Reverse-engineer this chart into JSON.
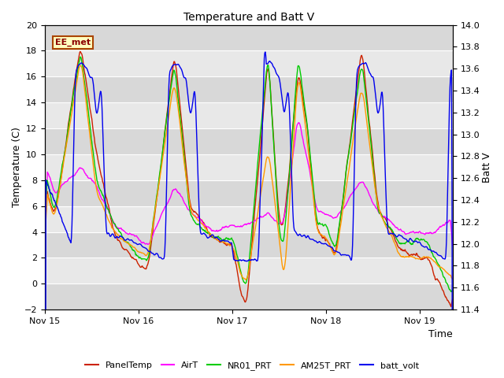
{
  "title": "Temperature and Batt V",
  "xlabel": "Time",
  "ylabel_left": "Temperature (C)",
  "ylabel_right": "Batt V",
  "annotation": "EE_met",
  "ylim_left": [
    -2,
    20
  ],
  "ylim_right": [
    11.4,
    14.0
  ],
  "plot_bg_color": "#e8e8e8",
  "stripe_color_dark": "#d0d0d0",
  "stripe_color_light": "#e8e8e8",
  "series": {
    "PanelTemp": {
      "color": "#cc2200",
      "lw": 1.0
    },
    "AirT": {
      "color": "#ff00ff",
      "lw": 1.0
    },
    "NR01_PRT": {
      "color": "#00cc00",
      "lw": 1.0
    },
    "AM25T_PRT": {
      "color": "#ff9900",
      "lw": 1.0
    },
    "batt_volt": {
      "color": "#0000ee",
      "lw": 1.0
    }
  },
  "xticks": [
    0,
    1,
    2,
    3,
    4
  ],
  "xtick_labels": [
    "Nov 15",
    "Nov 16",
    "Nov 17",
    "Nov 18",
    "Nov 19"
  ],
  "yticks_left": [
    -2,
    0,
    2,
    4,
    6,
    8,
    10,
    12,
    14,
    16,
    18,
    20
  ],
  "yticks_right": [
    11.4,
    11.6,
    11.8,
    12.0,
    12.2,
    12.4,
    12.6,
    12.8,
    13.0,
    13.2,
    13.4,
    13.6,
    13.8,
    14.0
  ],
  "figsize": [
    6.4,
    4.8
  ],
  "dpi": 100
}
